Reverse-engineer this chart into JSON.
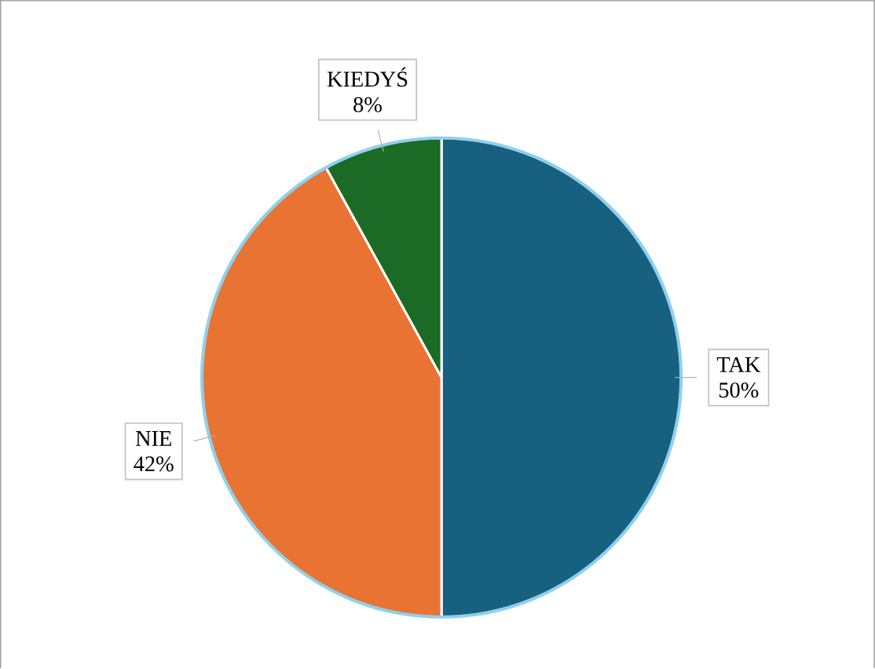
{
  "chart_data": {
    "type": "pie",
    "categories": [
      "TAK",
      "NIE",
      "KIEDYŚ"
    ],
    "values": [
      50,
      42,
      8
    ],
    "value_labels": [
      "50%",
      "42%",
      "8%"
    ],
    "colors": [
      "#17607f",
      "#e97333",
      "#1b6a25"
    ]
  }
}
